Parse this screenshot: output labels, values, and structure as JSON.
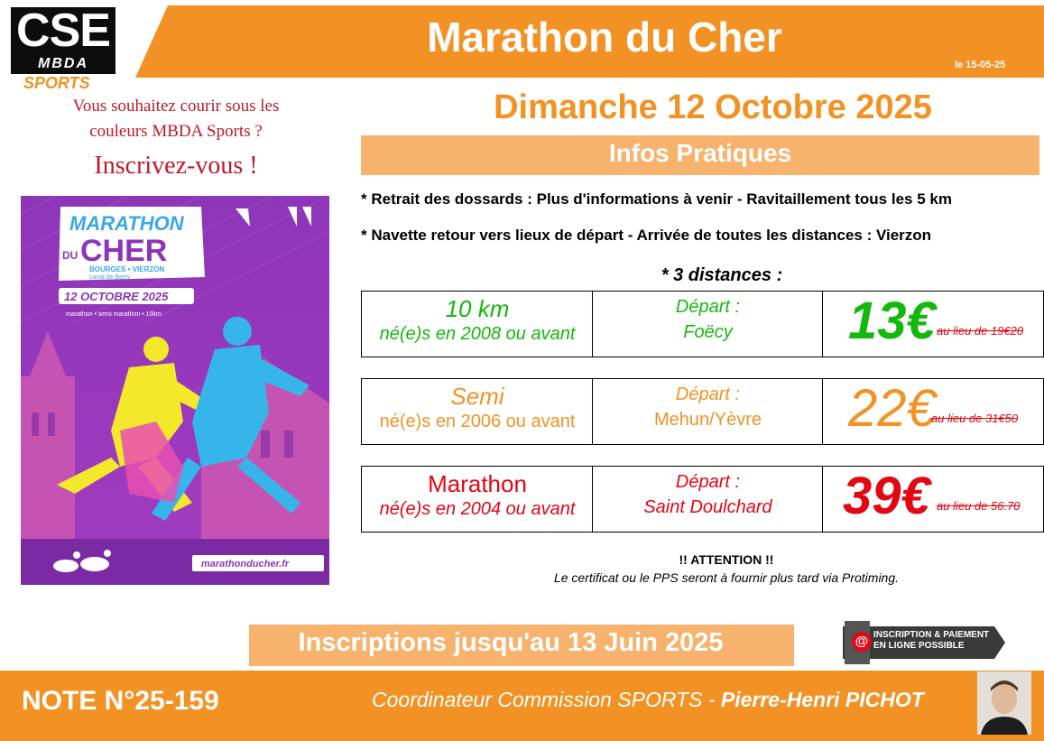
{
  "header": {
    "logo_main": "CSE",
    "logo_sub": "MBDA",
    "logo_tag": "SPORTS",
    "title": "Marathon du Cher",
    "date_note": "le 15-05-25"
  },
  "left": {
    "question_line1": "Vous souhaitez courir sous les",
    "question_line2": "couleurs MBDA Sports ?",
    "cta": "Inscrivez-vous !",
    "poster": {
      "title_top": "MARATHON",
      "title_du": "DU",
      "title_bottom": "CHER",
      "route": "BOURGES • VIERZON",
      "canal": "canal de Berry",
      "date": "12 OCTOBRE 2025",
      "formats": "marathon • semi marathon • 10km",
      "site": "marathonducher.fr"
    }
  },
  "main": {
    "event_date": "Dimanche 12 Octobre 2025",
    "infos_title": "Infos Pratiques",
    "info1": "* Retrait des dossards : Plus d'informations à venir - Ravitaillement tous les 5 km",
    "info2": "* Navette retour vers lieux de départ - Arrivée de toutes les distances : Vierzon",
    "distances_title": "* 3 distances :",
    "races": [
      {
        "name": "10 km",
        "birth": "né(e)s en 2008 ou avant",
        "depart_label": "Départ :",
        "depart_place": "Foëcy",
        "price": "13€",
        "old_price": "au lieu de 19€20",
        "color": "#14b80c"
      },
      {
        "name": "Semi",
        "birth": "né(e)s en 2006 ou avant",
        "depart_label": "Départ :",
        "depart_place": "Mehun/Yèvre",
        "price": "22€",
        "old_price": "au lieu de 31€50",
        "color": "#f39224"
      },
      {
        "name": "Marathon",
        "birth": "né(e)s en 2004 ou avant",
        "depart_label": "Départ :",
        "depart_place": "Saint Doulchard",
        "price": "39€",
        "old_price": "au lieu de 56.70",
        "color": "#e30613"
      }
    ],
    "attention": "!! ATTENTION !!",
    "certificate": "Le certificat ou le PPS seront à fournir plus tard via Protiming."
  },
  "bottom": {
    "inscriptions": "Inscriptions jusqu'au 13 Juin 2025",
    "pay_badge_line1": "INSCRIPTION & PAIEMENT",
    "pay_badge_line2": "EN LIGNE POSSIBLE",
    "pay_icon": "@",
    "note": "NOTE N°25-159",
    "coordinator_role": "Coordinateur Commission SPORTS - ",
    "coordinator_name": "Pierre-Henri PICHOT"
  },
  "colors": {
    "accent": "#f39224",
    "accent_light": "#f7b36e",
    "red": "#e30613",
    "green": "#14b80c"
  }
}
